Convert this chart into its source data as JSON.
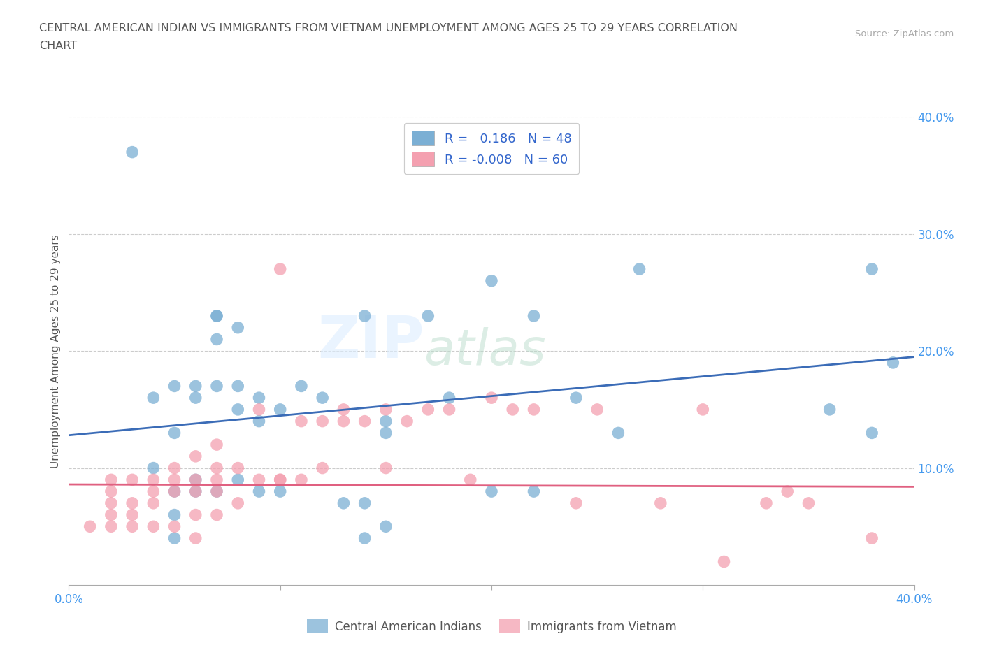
{
  "title_line1": "CENTRAL AMERICAN INDIAN VS IMMIGRANTS FROM VIETNAM UNEMPLOYMENT AMONG AGES 25 TO 29 YEARS CORRELATION",
  "title_line2": "CHART",
  "source_text": "Source: ZipAtlas.com",
  "ylabel": "Unemployment Among Ages 25 to 29 years",
  "xlim": [
    0.0,
    0.4
  ],
  "ylim": [
    0.0,
    0.4
  ],
  "xticks": [
    0.0,
    0.1,
    0.2,
    0.3,
    0.4
  ],
  "yticks": [
    0.1,
    0.2,
    0.3,
    0.4
  ],
  "xticklabels_edge": [
    "0.0%",
    "40.0%"
  ],
  "yticklabels": [
    "10.0%",
    "20.0%",
    "30.0%",
    "40.0%"
  ],
  "blue_R": 0.186,
  "blue_N": 48,
  "pink_R": -0.008,
  "pink_N": 60,
  "blue_color": "#7BAFD4",
  "pink_color": "#F4A0B0",
  "blue_line_color": "#3B6CB7",
  "pink_line_color": "#E06080",
  "watermark_zip": "ZIP",
  "watermark_atlas": "atlas",
  "legend_label_blue": "Central American Indians",
  "legend_label_pink": "Immigrants from Vietnam",
  "blue_line_x0": 0.0,
  "blue_line_y0": 0.128,
  "blue_line_x1": 0.4,
  "blue_line_y1": 0.195,
  "pink_line_x0": 0.0,
  "pink_line_y0": 0.086,
  "pink_line_x1": 0.4,
  "pink_line_y1": 0.084,
  "blue_scatter_x": [
    0.03,
    0.04,
    0.04,
    0.05,
    0.05,
    0.05,
    0.05,
    0.05,
    0.06,
    0.06,
    0.06,
    0.06,
    0.07,
    0.07,
    0.07,
    0.07,
    0.07,
    0.08,
    0.08,
    0.08,
    0.08,
    0.09,
    0.09,
    0.09,
    0.1,
    0.1,
    0.11,
    0.12,
    0.13,
    0.14,
    0.14,
    0.14,
    0.15,
    0.15,
    0.15,
    0.17,
    0.18,
    0.2,
    0.2,
    0.22,
    0.22,
    0.24,
    0.26,
    0.27,
    0.36,
    0.38,
    0.38,
    0.39
  ],
  "blue_scatter_y": [
    0.37,
    0.16,
    0.1,
    0.08,
    0.17,
    0.13,
    0.06,
    0.04,
    0.17,
    0.16,
    0.09,
    0.08,
    0.23,
    0.23,
    0.21,
    0.17,
    0.08,
    0.22,
    0.17,
    0.15,
    0.09,
    0.16,
    0.14,
    0.08,
    0.15,
    0.08,
    0.17,
    0.16,
    0.07,
    0.23,
    0.07,
    0.04,
    0.14,
    0.13,
    0.05,
    0.23,
    0.16,
    0.26,
    0.08,
    0.23,
    0.08,
    0.16,
    0.13,
    0.27,
    0.15,
    0.27,
    0.13,
    0.19
  ],
  "pink_scatter_x": [
    0.01,
    0.02,
    0.02,
    0.02,
    0.02,
    0.02,
    0.03,
    0.03,
    0.03,
    0.03,
    0.04,
    0.04,
    0.04,
    0.04,
    0.05,
    0.05,
    0.05,
    0.05,
    0.06,
    0.06,
    0.06,
    0.06,
    0.06,
    0.07,
    0.07,
    0.07,
    0.07,
    0.07,
    0.08,
    0.08,
    0.09,
    0.09,
    0.1,
    0.1,
    0.1,
    0.11,
    0.11,
    0.12,
    0.12,
    0.13,
    0.13,
    0.14,
    0.15,
    0.15,
    0.16,
    0.17,
    0.18,
    0.19,
    0.2,
    0.21,
    0.22,
    0.24,
    0.25,
    0.28,
    0.3,
    0.31,
    0.33,
    0.34,
    0.35,
    0.38
  ],
  "pink_scatter_y": [
    0.05,
    0.05,
    0.06,
    0.07,
    0.08,
    0.09,
    0.05,
    0.06,
    0.07,
    0.09,
    0.05,
    0.07,
    0.08,
    0.09,
    0.05,
    0.08,
    0.09,
    0.1,
    0.04,
    0.06,
    0.08,
    0.09,
    0.11,
    0.06,
    0.08,
    0.09,
    0.1,
    0.12,
    0.07,
    0.1,
    0.09,
    0.15,
    0.09,
    0.09,
    0.27,
    0.09,
    0.14,
    0.1,
    0.14,
    0.14,
    0.15,
    0.14,
    0.1,
    0.15,
    0.14,
    0.15,
    0.15,
    0.09,
    0.16,
    0.15,
    0.15,
    0.07,
    0.15,
    0.07,
    0.15,
    0.02,
    0.07,
    0.08,
    0.07,
    0.04
  ],
  "background_color": "#FFFFFF",
  "grid_color": "#CCCCCC"
}
